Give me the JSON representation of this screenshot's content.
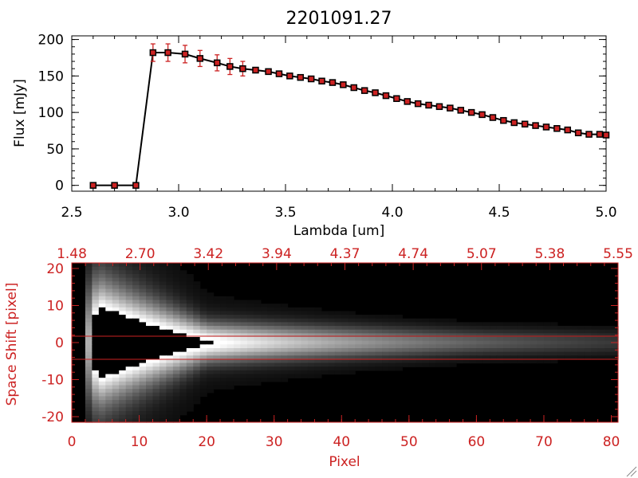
{
  "colors": {
    "axis_red": "#cc2222",
    "marker_red": "#cc2222",
    "line": "#000000",
    "error_bar": "#cc2222"
  },
  "chart_data": [
    {
      "type": "line",
      "title": "2201091.27",
      "xlabel": "Lambda [um]",
      "ylabel": "Flux [mJy]",
      "xlim": [
        2.5,
        5.0
      ],
      "ylim": [
        -8,
        205
      ],
      "x_ticks": [
        "2.5",
        "3.0",
        "3.5",
        "4.0",
        "4.5",
        "5.0"
      ],
      "y_ticks": [
        "0",
        "50",
        "100",
        "150",
        "200"
      ],
      "grid": false,
      "series": [
        {
          "x": [
            2.6,
            2.7,
            2.8,
            2.88,
            2.95,
            3.03,
            3.1,
            3.18,
            3.24,
            3.3,
            3.36,
            3.42,
            3.47,
            3.52,
            3.57,
            3.62,
            3.67,
            3.72,
            3.77,
            3.82,
            3.87,
            3.92,
            3.97,
            4.02,
            4.07,
            4.12,
            4.17,
            4.22,
            4.27,
            4.32,
            4.37,
            4.42,
            4.47,
            4.52,
            4.57,
            4.62,
            4.67,
            4.72,
            4.77,
            4.82,
            4.87,
            4.92,
            4.97,
            5.0
          ],
          "y": [
            0,
            0,
            0,
            182,
            182,
            180,
            174,
            168,
            163,
            160,
            158,
            156,
            153,
            150,
            148,
            146,
            143,
            141,
            138,
            134,
            130,
            127,
            123,
            119,
            115,
            112,
            110,
            108,
            106,
            103,
            100,
            97,
            93,
            89,
            86,
            84,
            82,
            80,
            78,
            76,
            72,
            70,
            70,
            69
          ],
          "yerr": [
            0,
            0,
            0,
            12,
            12,
            12,
            11,
            11,
            11,
            10,
            0,
            0,
            0,
            0,
            0,
            0,
            0,
            0,
            0,
            0,
            0,
            0,
            0,
            0,
            0,
            0,
            0,
            0,
            0,
            0,
            0,
            0,
            0,
            0,
            0,
            0,
            0,
            0,
            0,
            0,
            0,
            0,
            0,
            0
          ]
        }
      ]
    },
    {
      "type": "heatmap",
      "xlabel": "Pixel",
      "ylabel": "Space Shift [pixel]",
      "xlim": [
        0,
        81
      ],
      "ylim": [
        -21.5,
        21.5
      ],
      "x_ticks": [
        "0",
        "10",
        "20",
        "30",
        "40",
        "50",
        "60",
        "70",
        "80"
      ],
      "y_ticks": [
        "-20",
        "-10",
        "0",
        "10",
        "20"
      ],
      "top_ticks": [
        "1.48",
        "2.70",
        "3.42",
        "3.94",
        "4.37",
        "4.74",
        "5.07",
        "5.38",
        "5.55"
      ],
      "extraction_window": [
        -3,
        3
      ],
      "colormap": "grayscale"
    }
  ]
}
